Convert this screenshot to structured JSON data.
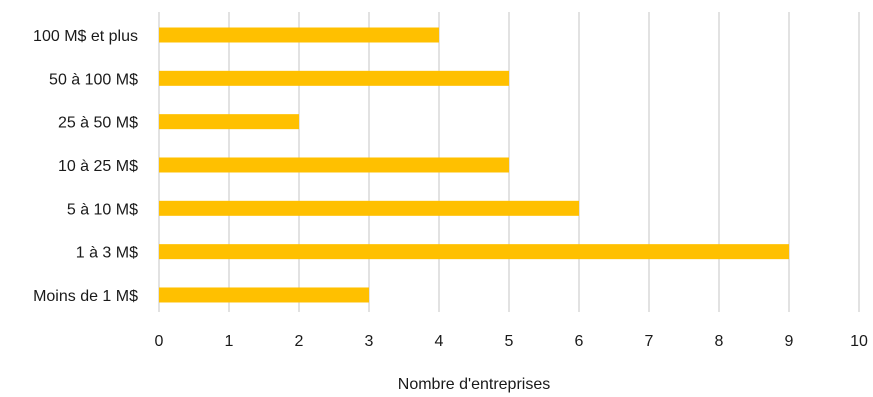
{
  "chart_data": {
    "type": "bar",
    "orientation": "horizontal",
    "categories": [
      "100 M$ et plus",
      "50 à 100 M$",
      "25 à 50 M$",
      "10 à 25 M$",
      "5 à 10 M$",
      "1 à 3 M$",
      "Moins de 1 M$"
    ],
    "values": [
      4,
      5,
      2,
      5,
      6,
      9,
      3
    ],
    "xlabel": "Nombre d'entreprises",
    "ylabel": "",
    "xlim": [
      0,
      10
    ],
    "xticks": [
      "0",
      "1",
      "2",
      "3",
      "4",
      "5",
      "6",
      "7",
      "8",
      "9",
      "10"
    ],
    "grid": "vertical",
    "bar_color": "#FFC000",
    "grid_color": "#D9D9D9"
  }
}
